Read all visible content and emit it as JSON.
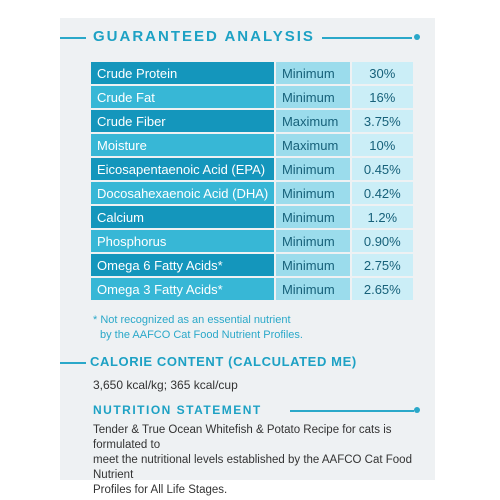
{
  "headings": {
    "analysis": "GUARANTEED ANALYSIS",
    "calorie": "CALORIE CONTENT (CALCULATED ME)",
    "nutrition": "NUTRITION STATEMENT"
  },
  "analysis_rows": [
    {
      "name": "Crude Protein",
      "qualifier": "Minimum",
      "value": "30%"
    },
    {
      "name": "Crude Fat",
      "qualifier": "Minimum",
      "value": "16%"
    },
    {
      "name": "Crude Fiber",
      "qualifier": "Maximum",
      "value": "3.75%"
    },
    {
      "name": "Moisture",
      "qualifier": "Maximum",
      "value": "10%"
    },
    {
      "name": "Eicosapentaenoic Acid (EPA)",
      "qualifier": "Minimum",
      "value": "0.45%"
    },
    {
      "name": "Docosahexaenoic Acid (DHA)",
      "qualifier": "Minimum",
      "value": "0.42%"
    },
    {
      "name": "Calcium",
      "qualifier": "Minimum",
      "value": "1.2%"
    },
    {
      "name": "Phosphorus",
      "qualifier": "Minimum",
      "value": "0.90%"
    },
    {
      "name": "Omega 6 Fatty Acids*",
      "qualifier": "Minimum",
      "value": "2.75%"
    },
    {
      "name": "Omega 3 Fatty Acids*",
      "qualifier": "Minimum",
      "value": "2.65%"
    }
  ],
  "footnote": {
    "line1": "* Not recognized as an essential nutrient",
    "line2": "by the AAFCO Cat Food Nutrient Profiles."
  },
  "calorie_text": "3,650 kcal/kg; 365 kcal/cup",
  "nutrition_text": {
    "line1": "Tender & True Ocean Whitefish & Potato Recipe for cats is formulated to",
    "line2": "meet the nutritional levels established by the AAFCO Cat Food Nutrient",
    "line3": "Profiles for All Life Stages."
  },
  "colors": {
    "accent": "#1da1c4",
    "row_dark": "#1496bc",
    "row_light": "#37b7d6",
    "qualifier_bg": "#9bdcec",
    "value_bg": "#cbeef7"
  }
}
